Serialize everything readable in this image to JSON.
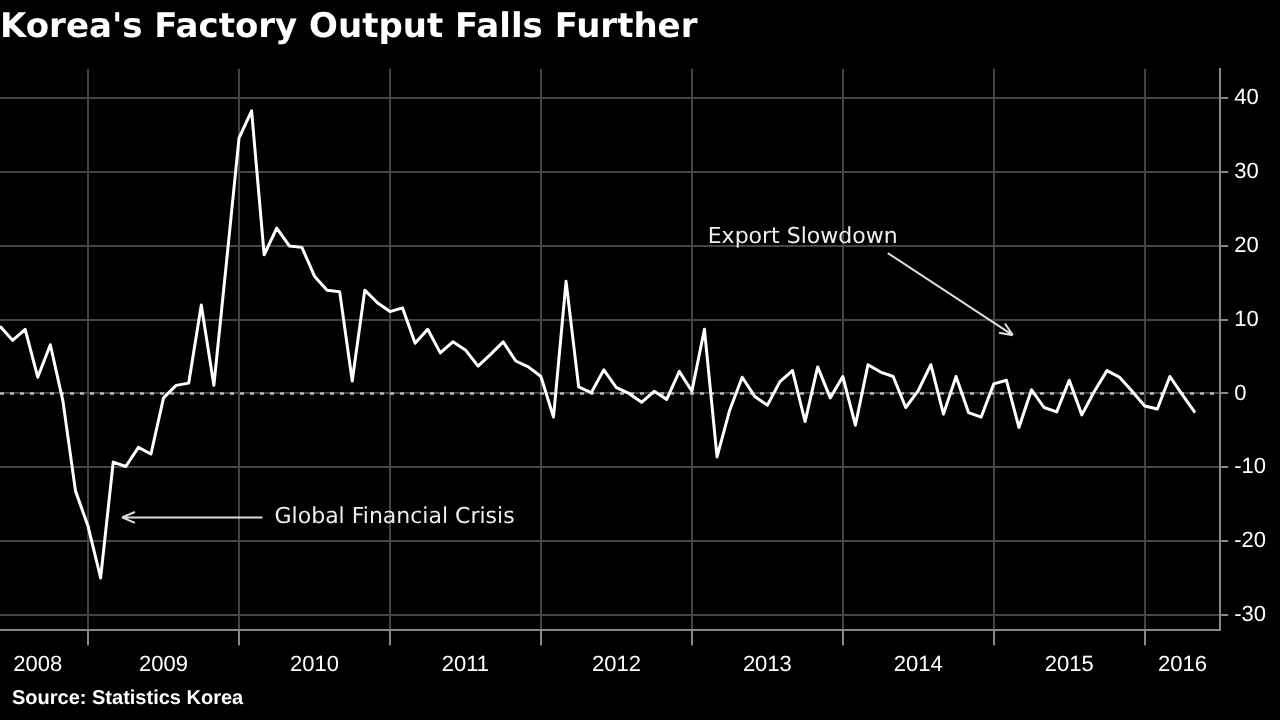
{
  "chart_data": {
    "type": "line",
    "title": "Korea's Factory Output Falls Further",
    "x": [
      "2008-06",
      "2008-07",
      "2008-08",
      "2008-09",
      "2008-10",
      "2008-11",
      "2008-12",
      "2009-01",
      "2009-02",
      "2009-03",
      "2009-04",
      "2009-05",
      "2009-06",
      "2009-07",
      "2009-08",
      "2009-09",
      "2009-10",
      "2009-11",
      "2009-12",
      "2010-01",
      "2010-02",
      "2010-03",
      "2010-04",
      "2010-05",
      "2010-06",
      "2010-07",
      "2010-08",
      "2010-09",
      "2010-10",
      "2010-11",
      "2010-12",
      "2011-01",
      "2011-02",
      "2011-03",
      "2011-04",
      "2011-05",
      "2011-06",
      "2011-07",
      "2011-08",
      "2011-09",
      "2011-10",
      "2011-11",
      "2011-12",
      "2012-01",
      "2012-02",
      "2012-03",
      "2012-04",
      "2012-05",
      "2012-06",
      "2012-07",
      "2012-08",
      "2012-09",
      "2012-10",
      "2012-11",
      "2012-12",
      "2013-01",
      "2013-02",
      "2013-03",
      "2013-04",
      "2013-05",
      "2013-06",
      "2013-07",
      "2013-08",
      "2013-09",
      "2013-10",
      "2013-11",
      "2013-12",
      "2014-01",
      "2014-02",
      "2014-03",
      "2014-04",
      "2014-05",
      "2014-06",
      "2014-07",
      "2014-08",
      "2014-09",
      "2014-10",
      "2014-11",
      "2014-12",
      "2015-01",
      "2015-02",
      "2015-03",
      "2015-04",
      "2015-05",
      "2015-06",
      "2015-07",
      "2015-08",
      "2015-09",
      "2015-10",
      "2015-11",
      "2015-12",
      "2016-01",
      "2016-02",
      "2016-03",
      "2016-04",
      "2016-05"
    ],
    "series": [
      {
        "color": "#ffffff",
        "values": [
          9.1,
          7.2,
          8.7,
          2.2,
          6.6,
          -1,
          -13.2,
          -18,
          -25,
          -9.3,
          -9.9,
          -7.3,
          -8.2,
          -0.6,
          1.1,
          1.4,
          12,
          1.1,
          17.7,
          34.6,
          38.3,
          18.8,
          22.4,
          20,
          19.8,
          15.9,
          14,
          13.8,
          1.7,
          14,
          12.3,
          11.1,
          11.6,
          6.8,
          8.7,
          5.5,
          7,
          5.9,
          3.7,
          5.3,
          7,
          4.4,
          3.6,
          2.3,
          -3.2,
          15.2,
          0.9,
          0.1,
          3.2,
          0.8,
          0,
          -1.2,
          0.3,
          -0.8,
          3,
          0.3,
          8.7,
          -8.6,
          -2.3,
          2.2,
          -0.4,
          -1.6,
          1.6,
          3.1,
          -3.8,
          3.6,
          -0.6,
          2.3,
          -4.3,
          3.9,
          2.9,
          2.3,
          -1.9,
          0.4,
          3.9,
          -2.8,
          2.3,
          -2.6,
          -3.2,
          1.3,
          1.8,
          -4.6,
          0.5,
          -1.9,
          -2.5,
          1.8,
          -2.9,
          0.3,
          3.1,
          2.2,
          0.3,
          -1.7,
          -2.1,
          2.3,
          -0.2,
          -2.6
        ]
      }
    ],
    "xlim": [
      "2008-06",
      "2016-07"
    ],
    "xticks": [
      {
        "value": "2009-01",
        "label": null
      },
      {
        "value": "2010-01",
        "label": null
      },
      {
        "value": "2011-01",
        "label": null
      },
      {
        "value": "2012-01",
        "label": null
      },
      {
        "value": "2013-01",
        "label": null
      },
      {
        "value": "2014-01",
        "label": null
      },
      {
        "value": "2015-01",
        "label": null
      },
      {
        "value": "2016-01",
        "label": null
      },
      {
        "value": "2008-09",
        "label": "2008"
      },
      {
        "value": "2009-07",
        "label": "2009"
      },
      {
        "value": "2010-07",
        "label": "2010"
      },
      {
        "value": "2011-07",
        "label": "2011"
      },
      {
        "value": "2012-07",
        "label": "2012"
      },
      {
        "value": "2013-07",
        "label": "2013"
      },
      {
        "value": "2014-07",
        "label": "2014"
      },
      {
        "value": "2015-07",
        "label": "2015"
      },
      {
        "value": "2016-04",
        "label": "2016"
      }
    ],
    "ylim": [
      -32,
      44
    ],
    "yticks": [
      -30,
      -20,
      -10,
      0,
      10,
      20,
      30,
      40
    ],
    "grid": true,
    "legend": false,
    "marker": "none",
    "line_style": "solid",
    "ref_lines": [
      {
        "axis": "y",
        "value": 0,
        "line_style": "dotted",
        "color": "#bbbbbb"
      }
    ],
    "annotations": [
      "Global Financial Crisis",
      "Export Slowdown",
      "Source: Statistics Korea"
    ]
  }
}
